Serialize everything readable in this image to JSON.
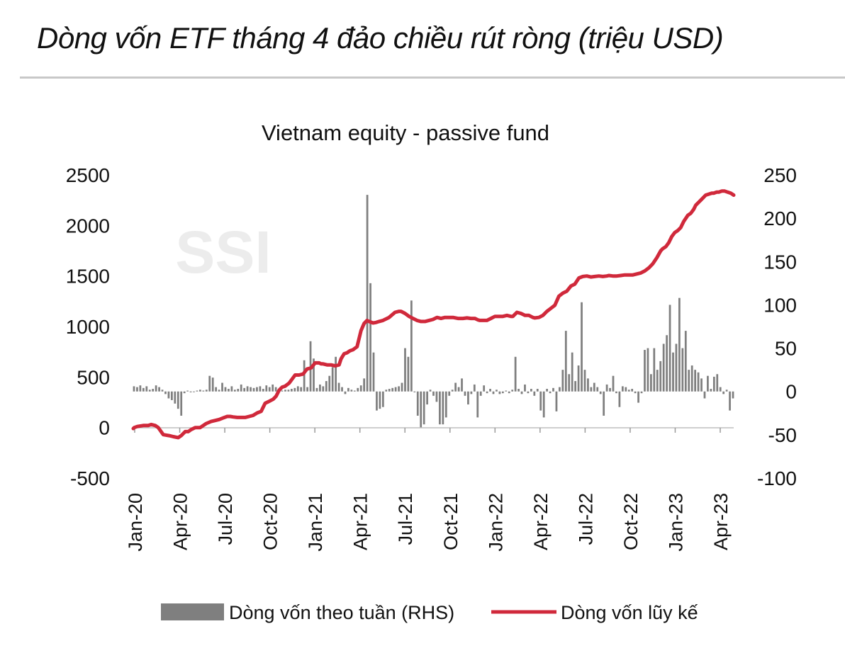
{
  "page": {
    "title": "Dòng vốn ETF tháng 4 đảo chiều rút ròng (triệu USD)"
  },
  "chart_data": {
    "type": "bar+line",
    "title": "Vietnam equity - passive fund",
    "watermark": "SSI",
    "x_labels": [
      "Jan-20",
      "Apr-20",
      "Jul-20",
      "Oct-20",
      "Jan-21",
      "Apr-21",
      "Jul-21",
      "Oct-21",
      "Jan-22",
      "Apr-22",
      "Jul-22",
      "Oct-22",
      "Jan-23",
      "Apr-23"
    ],
    "left_axis": {
      "ticks": [
        "2500",
        "2000",
        "1500",
        "1000",
        "500",
        "0",
        "-500"
      ],
      "ylim": [
        -500,
        2500
      ]
    },
    "right_axis": {
      "ticks": [
        "250",
        "200",
        "150",
        "100",
        "50",
        "0",
        "-50",
        "-100"
      ],
      "ylim": [
        -100,
        250
      ]
    },
    "legend": {
      "bar_label": "Dòng vốn theo tuần (RHS)",
      "line_label": "Dòng vốn lũy kế",
      "position": "bottom"
    },
    "colors": {
      "bar": "#7f7f7f",
      "line": "#d0293b",
      "watermark": "#ececec"
    },
    "series": [
      {
        "name": "Dòng vốn theo tuần (RHS)",
        "axis": "right",
        "type": "bar",
        "values": [
          6,
          5,
          7,
          4,
          6,
          2,
          3,
          7,
          5,
          2,
          -3,
          -8,
          -10,
          -14,
          -20,
          -28,
          -2,
          1,
          -1,
          0,
          1,
          2,
          1,
          2,
          18,
          16,
          5,
          2,
          10,
          5,
          3,
          6,
          2,
          3,
          8,
          4,
          6,
          5,
          4,
          5,
          6,
          3,
          7,
          5,
          8,
          5,
          3,
          1,
          2,
          2,
          3,
          4,
          6,
          5,
          36,
          5,
          58,
          38,
          4,
          8,
          6,
          12,
          18,
          28,
          40,
          10,
          5,
          -3,
          4,
          2,
          1,
          4,
          7,
          15,
          227,
          125,
          45,
          -22,
          -20,
          -18,
          2,
          3,
          4,
          5,
          6,
          10,
          50,
          40,
          105,
          -1,
          -28,
          -42,
          -38,
          -15,
          2,
          -5,
          -12,
          -38,
          -38,
          -30,
          -5,
          2,
          10,
          5,
          15,
          -5,
          -15,
          -3,
          8,
          -30,
          -5,
          7,
          -2,
          3,
          -3,
          2,
          -3,
          -2,
          1,
          -2,
          2,
          40,
          3,
          -3,
          8,
          -2,
          3,
          -5,
          3,
          -22,
          -30,
          3,
          -2,
          4,
          -23,
          5,
          25,
          70,
          20,
          45,
          12,
          30,
          103,
          25,
          15,
          5,
          10,
          5,
          -3,
          -28,
          8,
          4,
          18,
          -2,
          -18,
          6,
          5,
          2,
          3,
          -2,
          -13,
          -2,
          48,
          50,
          20,
          50,
          25,
          35,
          55,
          65,
          100,
          45,
          55,
          108,
          50,
          70,
          25,
          30,
          25,
          22,
          15,
          -8,
          18,
          3,
          17,
          20,
          5,
          -3,
          2,
          -22,
          -8
        ]
      },
      {
        "name": "Dòng vốn lũy kế",
        "axis": "left",
        "type": "line",
        "points": [
          [
            0,
            -10
          ],
          [
            1,
            0
          ],
          [
            4,
            10
          ],
          [
            10,
            20
          ],
          [
            15,
            20
          ],
          [
            18,
            30
          ],
          [
            22,
            20
          ],
          [
            25,
            0
          ],
          [
            30,
            -70
          ],
          [
            36,
            -80
          ],
          [
            40,
            -90
          ],
          [
            45,
            -100
          ],
          [
            48,
            -80
          ],
          [
            52,
            -40
          ],
          [
            55,
            -40
          ],
          [
            58,
            -20
          ],
          [
            62,
            0
          ],
          [
            67,
            0
          ],
          [
            70,
            20
          ],
          [
            73,
            40
          ],
          [
            78,
            60
          ],
          [
            82,
            70
          ],
          [
            86,
            80
          ],
          [
            90,
            95
          ],
          [
            94,
            110
          ],
          [
            97,
            110
          ],
          [
            100,
            105
          ],
          [
            104,
            100
          ],
          [
            108,
            100
          ],
          [
            112,
            100
          ],
          [
            116,
            110
          ],
          [
            120,
            120
          ],
          [
            124,
            145
          ],
          [
            128,
            160
          ],
          [
            132,
            240
          ],
          [
            136,
            260
          ],
          [
            140,
            280
          ],
          [
            143,
            310
          ],
          [
            146,
            370
          ],
          [
            149,
            400
          ],
          [
            152,
            410
          ],
          [
            156,
            440
          ],
          [
            159,
            480
          ],
          [
            162,
            520
          ],
          [
            166,
            520
          ],
          [
            170,
            530
          ],
          [
            174,
            580
          ],
          [
            178,
            590
          ],
          [
            182,
            640
          ],
          [
            186,
            640
          ],
          [
            188,
            630
          ],
          [
            190,
            630
          ],
          [
            194,
            620
          ],
          [
            198,
            620
          ],
          [
            202,
            610
          ],
          [
            206,
            620
          ],
          [
            208,
            680
          ],
          [
            211,
            730
          ],
          [
            214,
            740
          ],
          [
            217,
            760
          ],
          [
            220,
            770
          ],
          [
            224,
            800
          ],
          [
            228,
            960
          ],
          [
            231,
            1030
          ],
          [
            234,
            1060
          ],
          [
            236,
            1050
          ],
          [
            240,
            1035
          ],
          [
            243,
            1040
          ],
          [
            246,
            1050
          ],
          [
            250,
            1060
          ],
          [
            256,
            1090
          ],
          [
            262,
            1140
          ],
          [
            266,
            1150
          ],
          [
            268,
            1150
          ],
          [
            272,
            1130
          ],
          [
            276,
            1100
          ],
          [
            280,
            1080
          ],
          [
            284,
            1060
          ],
          [
            288,
            1050
          ],
          [
            292,
            1050
          ],
          [
            296,
            1060
          ],
          [
            300,
            1070
          ],
          [
            304,
            1090
          ],
          [
            308,
            1080
          ],
          [
            312,
            1090
          ],
          [
            316,
            1090
          ],
          [
            320,
            1090
          ],
          [
            325,
            1080
          ],
          [
            330,
            1080
          ],
          [
            334,
            1085
          ],
          [
            338,
            1080
          ],
          [
            342,
            1080
          ],
          [
            345,
            1065
          ],
          [
            347,
            1060
          ],
          [
            350,
            1060
          ],
          [
            354,
            1060
          ],
          [
            358,
            1080
          ],
          [
            362,
            1100
          ],
          [
            366,
            1100
          ],
          [
            370,
            1100
          ],
          [
            374,
            1110
          ],
          [
            378,
            1100
          ],
          [
            380,
            1100
          ],
          [
            384,
            1140
          ],
          [
            388,
            1130
          ],
          [
            392,
            1110
          ],
          [
            396,
            1110
          ],
          [
            400,
            1090
          ],
          [
            402,
            1085
          ],
          [
            406,
            1090
          ],
          [
            410,
            1110
          ],
          [
            414,
            1150
          ],
          [
            418,
            1180
          ],
          [
            422,
            1210
          ],
          [
            426,
            1300
          ],
          [
            430,
            1330
          ],
          [
            434,
            1350
          ],
          [
            438,
            1400
          ],
          [
            442,
            1420
          ],
          [
            446,
            1480
          ],
          [
            450,
            1495
          ],
          [
            454,
            1500
          ],
          [
            458,
            1490
          ],
          [
            462,
            1495
          ],
          [
            466,
            1500
          ],
          [
            470,
            1495
          ],
          [
            474,
            1500
          ],
          [
            476,
            1505
          ],
          [
            480,
            1500
          ],
          [
            484,
            1500
          ],
          [
            488,
            1505
          ],
          [
            492,
            1510
          ],
          [
            496,
            1510
          ],
          [
            500,
            1510
          ],
          [
            504,
            1520
          ],
          [
            508,
            1530
          ],
          [
            512,
            1550
          ],
          [
            516,
            1580
          ],
          [
            520,
            1620
          ],
          [
            524,
            1680
          ],
          [
            528,
            1750
          ],
          [
            530,
            1770
          ],
          [
            533,
            1790
          ],
          [
            536,
            1830
          ],
          [
            539,
            1890
          ],
          [
            542,
            1930
          ],
          [
            545,
            1950
          ],
          [
            548,
            1980
          ],
          [
            551,
            2040
          ],
          [
            553,
            2070
          ],
          [
            555,
            2100
          ],
          [
            558,
            2120
          ],
          [
            561,
            2160
          ],
          [
            563,
            2200
          ],
          [
            566,
            2230
          ],
          [
            568,
            2250
          ],
          [
            571,
            2280
          ],
          [
            573,
            2300
          ],
          [
            576,
            2310
          ],
          [
            579,
            2320
          ],
          [
            581,
            2320
          ],
          [
            584,
            2330
          ],
          [
            586,
            2330
          ],
          [
            589,
            2340
          ],
          [
            592,
            2340
          ],
          [
            595,
            2330
          ],
          [
            598,
            2320
          ],
          [
            601,
            2300
          ]
        ]
      }
    ]
  }
}
